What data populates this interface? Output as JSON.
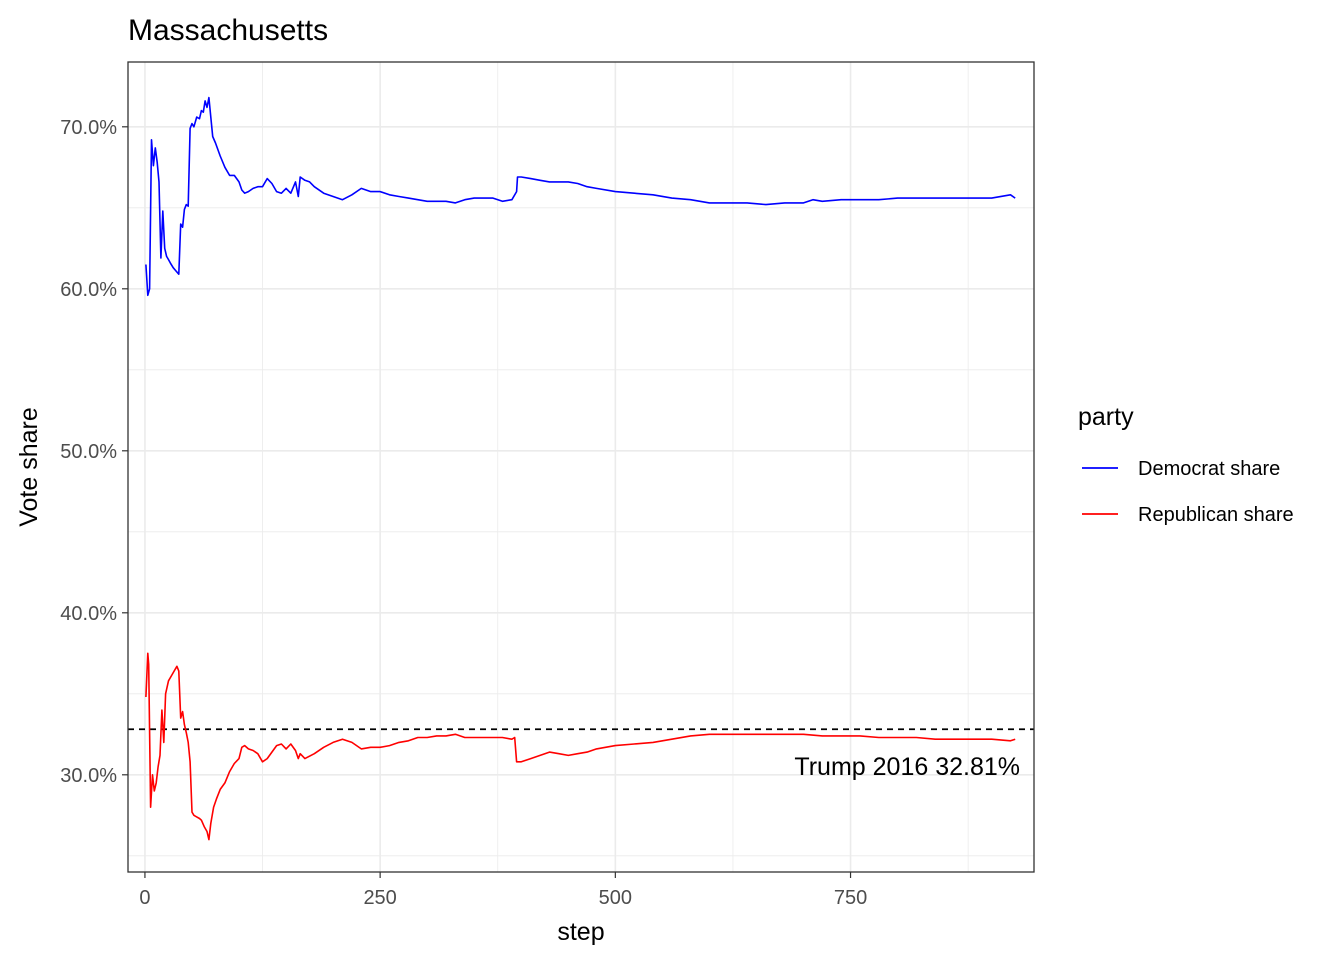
{
  "chart_data": {
    "type": "line",
    "title": "Massachusetts",
    "xlabel": "step",
    "ylabel": "Vote share",
    "xlim": [
      -18,
      945
    ],
    "ylim": [
      24.0,
      74.0
    ],
    "x_ticks": [
      0,
      250,
      500,
      750
    ],
    "x_tick_labels": [
      "0",
      "250",
      "500",
      "750"
    ],
    "y_ticks": [
      30,
      40,
      50,
      60,
      70
    ],
    "y_tick_labels": [
      "30.0%",
      "40.0%",
      "50.0%",
      "60.0%",
      "70.0%"
    ],
    "grid": true,
    "legend": {
      "title": "party",
      "placement": "right"
    },
    "reference_line": {
      "y": 32.81,
      "style": "dashed",
      "color": "#000000",
      "label": "Trump 2016 32.81%"
    },
    "series": [
      {
        "name": "Democrat share",
        "color": "#0000ff",
        "points": [
          [
            1,
            61.5
          ],
          [
            3,
            59.6
          ],
          [
            5,
            60.0
          ],
          [
            7,
            69.2
          ],
          [
            9,
            67.6
          ],
          [
            11,
            68.7
          ],
          [
            13,
            67.8
          ],
          [
            15,
            66.6
          ],
          [
            17,
            61.9
          ],
          [
            19,
            64.8
          ],
          [
            21,
            62.5
          ],
          [
            23,
            62.0
          ],
          [
            25,
            61.8
          ],
          [
            27,
            61.6
          ],
          [
            30,
            61.3
          ],
          [
            33,
            61.1
          ],
          [
            36,
            60.9
          ],
          [
            38,
            64.0
          ],
          [
            40,
            63.8
          ],
          [
            42,
            64.9
          ],
          [
            44,
            65.2
          ],
          [
            46,
            65.1
          ],
          [
            48,
            69.9
          ],
          [
            50,
            70.2
          ],
          [
            52,
            70.0
          ],
          [
            55,
            70.6
          ],
          [
            58,
            70.5
          ],
          [
            60,
            71.0
          ],
          [
            62,
            70.9
          ],
          [
            64,
            71.6
          ],
          [
            66,
            71.2
          ],
          [
            68,
            71.8
          ],
          [
            70,
            70.6
          ],
          [
            72,
            69.4
          ],
          [
            75,
            69.0
          ],
          [
            80,
            68.2
          ],
          [
            85,
            67.5
          ],
          [
            90,
            67.0
          ],
          [
            95,
            67.0
          ],
          [
            100,
            66.6
          ],
          [
            103,
            66.1
          ],
          [
            106,
            65.9
          ],
          [
            110,
            66.0
          ],
          [
            115,
            66.2
          ],
          [
            120,
            66.3
          ],
          [
            125,
            66.3
          ],
          [
            130,
            66.8
          ],
          [
            135,
            66.5
          ],
          [
            140,
            66.0
          ],
          [
            145,
            65.9
          ],
          [
            150,
            66.2
          ],
          [
            155,
            65.9
          ],
          [
            160,
            66.6
          ],
          [
            163,
            65.7
          ],
          [
            165,
            66.9
          ],
          [
            170,
            66.7
          ],
          [
            175,
            66.6
          ],
          [
            180,
            66.3
          ],
          [
            190,
            65.9
          ],
          [
            200,
            65.7
          ],
          [
            210,
            65.5
          ],
          [
            220,
            65.8
          ],
          [
            230,
            66.2
          ],
          [
            240,
            66.0
          ],
          [
            250,
            66.0
          ],
          [
            260,
            65.8
          ],
          [
            270,
            65.7
          ],
          [
            280,
            65.6
          ],
          [
            290,
            65.5
          ],
          [
            300,
            65.4
          ],
          [
            310,
            65.4
          ],
          [
            320,
            65.4
          ],
          [
            330,
            65.3
          ],
          [
            340,
            65.5
          ],
          [
            350,
            65.6
          ],
          [
            360,
            65.6
          ],
          [
            370,
            65.6
          ],
          [
            380,
            65.4
          ],
          [
            390,
            65.5
          ],
          [
            395,
            66.0
          ],
          [
            396,
            66.9
          ],
          [
            400,
            66.9
          ],
          [
            410,
            66.8
          ],
          [
            420,
            66.7
          ],
          [
            430,
            66.6
          ],
          [
            440,
            66.6
          ],
          [
            450,
            66.6
          ],
          [
            460,
            66.5
          ],
          [
            470,
            66.3
          ],
          [
            480,
            66.2
          ],
          [
            500,
            66.0
          ],
          [
            520,
            65.9
          ],
          [
            540,
            65.8
          ],
          [
            560,
            65.6
          ],
          [
            580,
            65.5
          ],
          [
            600,
            65.3
          ],
          [
            620,
            65.3
          ],
          [
            640,
            65.3
          ],
          [
            660,
            65.2
          ],
          [
            680,
            65.3
          ],
          [
            700,
            65.3
          ],
          [
            710,
            65.5
          ],
          [
            720,
            65.4
          ],
          [
            740,
            65.5
          ],
          [
            760,
            65.5
          ],
          [
            780,
            65.5
          ],
          [
            800,
            65.6
          ],
          [
            820,
            65.6
          ],
          [
            840,
            65.6
          ],
          [
            860,
            65.6
          ],
          [
            880,
            65.6
          ],
          [
            900,
            65.6
          ],
          [
            920,
            65.8
          ],
          [
            925,
            65.6
          ]
        ]
      },
      {
        "name": "Republican share",
        "color": "#ff0000",
        "points": [
          [
            1,
            34.8
          ],
          [
            3,
            37.5
          ],
          [
            4,
            36.8
          ],
          [
            6,
            28.0
          ],
          [
            8,
            30.0
          ],
          [
            10,
            29.0
          ],
          [
            12,
            29.5
          ],
          [
            14,
            30.5
          ],
          [
            16,
            31.2
          ],
          [
            18,
            34.0
          ],
          [
            20,
            32.0
          ],
          [
            22,
            35.0
          ],
          [
            25,
            35.8
          ],
          [
            28,
            36.1
          ],
          [
            31,
            36.4
          ],
          [
            34,
            36.7
          ],
          [
            36,
            36.4
          ],
          [
            38,
            33.5
          ],
          [
            40,
            33.9
          ],
          [
            42,
            33.1
          ],
          [
            44,
            32.6
          ],
          [
            46,
            32.0
          ],
          [
            48,
            30.8
          ],
          [
            50,
            27.7
          ],
          [
            52,
            27.5
          ],
          [
            55,
            27.4
          ],
          [
            58,
            27.3
          ],
          [
            60,
            27.2
          ],
          [
            63,
            26.8
          ],
          [
            66,
            26.5
          ],
          [
            68,
            26.0
          ],
          [
            70,
            27.0
          ],
          [
            73,
            28.0
          ],
          [
            76,
            28.5
          ],
          [
            80,
            29.1
          ],
          [
            85,
            29.5
          ],
          [
            90,
            30.2
          ],
          [
            95,
            30.7
          ],
          [
            100,
            31.0
          ],
          [
            103,
            31.7
          ],
          [
            106,
            31.8
          ],
          [
            110,
            31.6
          ],
          [
            115,
            31.5
          ],
          [
            120,
            31.3
          ],
          [
            125,
            30.8
          ],
          [
            130,
            31.0
          ],
          [
            135,
            31.4
          ],
          [
            140,
            31.8
          ],
          [
            145,
            31.9
          ],
          [
            150,
            31.6
          ],
          [
            155,
            31.9
          ],
          [
            160,
            31.5
          ],
          [
            163,
            31.0
          ],
          [
            165,
            31.3
          ],
          [
            170,
            31.0
          ],
          [
            180,
            31.3
          ],
          [
            190,
            31.7
          ],
          [
            200,
            32.0
          ],
          [
            210,
            32.2
          ],
          [
            220,
            32.0
          ],
          [
            230,
            31.6
          ],
          [
            240,
            31.7
          ],
          [
            250,
            31.7
          ],
          [
            260,
            31.8
          ],
          [
            270,
            32.0
          ],
          [
            280,
            32.1
          ],
          [
            290,
            32.3
          ],
          [
            300,
            32.3
          ],
          [
            310,
            32.4
          ],
          [
            320,
            32.4
          ],
          [
            330,
            32.5
          ],
          [
            340,
            32.3
          ],
          [
            350,
            32.3
          ],
          [
            360,
            32.3
          ],
          [
            370,
            32.3
          ],
          [
            380,
            32.3
          ],
          [
            390,
            32.2
          ],
          [
            393,
            32.3
          ],
          [
            395,
            30.8
          ],
          [
            400,
            30.8
          ],
          [
            410,
            31.0
          ],
          [
            420,
            31.2
          ],
          [
            430,
            31.4
          ],
          [
            440,
            31.3
          ],
          [
            450,
            31.2
          ],
          [
            460,
            31.3
          ],
          [
            470,
            31.4
          ],
          [
            480,
            31.6
          ],
          [
            500,
            31.8
          ],
          [
            520,
            31.9
          ],
          [
            540,
            32.0
          ],
          [
            560,
            32.2
          ],
          [
            580,
            32.4
          ],
          [
            600,
            32.5
          ],
          [
            620,
            32.5
          ],
          [
            640,
            32.5
          ],
          [
            660,
            32.5
          ],
          [
            680,
            32.5
          ],
          [
            700,
            32.5
          ],
          [
            720,
            32.4
          ],
          [
            740,
            32.4
          ],
          [
            760,
            32.4
          ],
          [
            780,
            32.3
          ],
          [
            800,
            32.3
          ],
          [
            820,
            32.3
          ],
          [
            840,
            32.2
          ],
          [
            860,
            32.2
          ],
          [
            880,
            32.2
          ],
          [
            900,
            32.2
          ],
          [
            920,
            32.1
          ],
          [
            925,
            32.2
          ]
        ]
      }
    ]
  }
}
